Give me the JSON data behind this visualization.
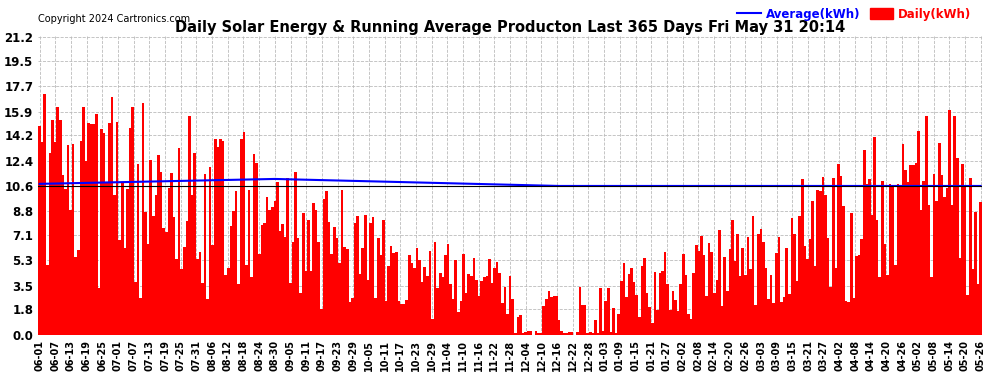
{
  "title": "Daily Solar Energy & Running Average Producton Last 365 Days Fri May 31 20:14",
  "copyright": "Copyright 2024 Cartronics.com",
  "legend_avg": "Average(kWh)",
  "legend_daily": "Daily(kWh)",
  "yticks": [
    0.0,
    1.8,
    3.5,
    5.3,
    7.1,
    8.8,
    10.6,
    12.4,
    14.2,
    15.9,
    17.7,
    19.5,
    21.2
  ],
  "ymax": 21.2,
  "ymin": 0.0,
  "bar_color": "#ff0000",
  "avg_color": "#0000ff",
  "hline_color": "#000000",
  "background_color": "#ffffff",
  "grid_color": "#bbbbbb",
  "title_color": "#000000",
  "avg_line_value": 10.6,
  "xtick_labels": [
    "06-01",
    "06-07",
    "06-13",
    "06-19",
    "06-25",
    "07-01",
    "07-07",
    "07-13",
    "07-19",
    "07-25",
    "07-31",
    "08-06",
    "08-12",
    "08-18",
    "08-24",
    "08-30",
    "09-05",
    "09-11",
    "09-17",
    "09-23",
    "09-29",
    "10-05",
    "10-11",
    "10-17",
    "10-23",
    "10-29",
    "11-04",
    "11-10",
    "11-16",
    "11-22",
    "11-28",
    "12-04",
    "12-10",
    "12-16",
    "12-22",
    "12-28",
    "01-03",
    "01-09",
    "01-15",
    "01-21",
    "01-27",
    "02-02",
    "02-08",
    "02-14",
    "02-20",
    "02-26",
    "03-03",
    "03-09",
    "03-15",
    "03-21",
    "03-27",
    "04-02",
    "04-08",
    "04-14",
    "04-20",
    "04-26",
    "05-02",
    "05-08",
    "05-14",
    "05-20",
    "05-26"
  ]
}
